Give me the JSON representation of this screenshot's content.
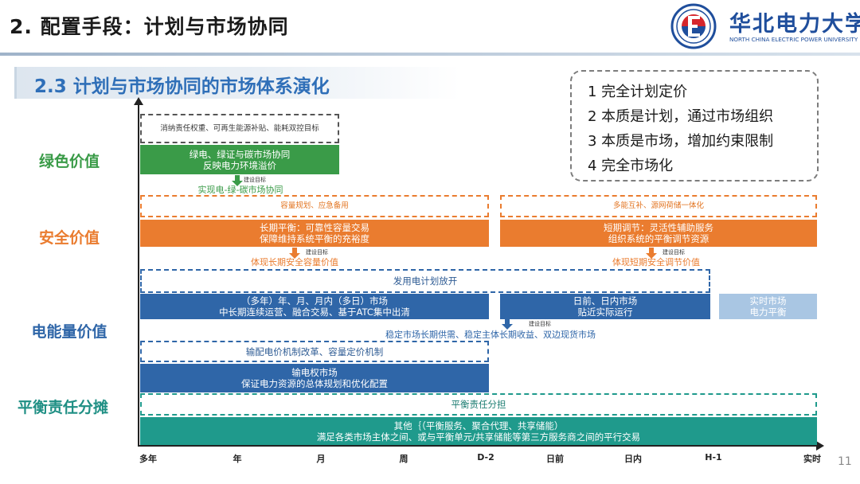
{
  "header": {
    "slide_title": "2. 配置手段：计划与市场协同",
    "logo_cn": "华北电力大学",
    "logo_en": "NORTH CHINA ELECTRIC POWER UNIVERSITY"
  },
  "section": {
    "title": "2.3 计划与市场协同的市场体系演化"
  },
  "legend": [
    "1 完全计划定价",
    "2 本质是计划，通过市场组织",
    "3 本质是市场，增加约束限制",
    "4 完全市场化"
  ],
  "rows": {
    "green": "绿色价值",
    "safety": "安全价值",
    "energy": "电能量价值",
    "balance": "平衡责任分摊"
  },
  "colors": {
    "green": "#3a9b48",
    "orange": "#ea7c2f",
    "blue": "#2f66a8",
    "light_blue": "#a9c6e3",
    "teal": "#1f9a8c"
  },
  "axis_ticks": [
    "多年",
    "年",
    "月",
    "周",
    "D-2",
    "日前",
    "日内",
    "H-1",
    "实时"
  ],
  "arrow_tag": "建设目标",
  "blocks": {
    "green_dashed": "消纳责任权重、可再生能源补贴、能耗双控目标",
    "green_solid": {
      "line1": "绿电、绿证与碳市场协同",
      "line2": "反映电力环境溢价"
    },
    "green_outcome": "实现电-绿-碳市场协同",
    "safety_left_dashed": "容量规划、应急备用",
    "safety_left_solid": {
      "line1": "长期平衡：可靠性容量交易",
      "line2": "保障维持系统平衡的充裕度"
    },
    "safety_left_outcome": "体现长期安全容量价值",
    "safety_right_dashed": "多能互补、源网荷储一体化",
    "safety_right_solid": {
      "line1": "短期调节：灵活性辅助服务",
      "line2": "组织系统的平衡调节资源"
    },
    "safety_right_outcome": "体现短期安全调节价值",
    "energy_plan": "发用电计划放开",
    "energy_mid_long": {
      "line1": "（多年）年、月、月内（多日）市场",
      "line2": "中长期连续运营、融合交易、基于ATC集中出清"
    },
    "energy_spot": {
      "line1": "日前、日内市场",
      "line2": "贴近实际运行"
    },
    "energy_realtime": {
      "line1": "实时市场",
      "line2": "电力平衡"
    },
    "energy_outcome": "稳定市场长期供需、稳定主体长期收益、双边现货市场",
    "energy_price_reform": "输配电价机制改革、容量定价机制",
    "energy_ftr": {
      "line1": "输电权市场",
      "line2": "保证电力资源的总体规划和优化配置"
    },
    "balance_dashed": "平衡责任分担",
    "balance_solid": {
      "line1": "其他｛（平衡服务、聚合代理、共享储能）",
      "line2": "满足各类市场主体之间、或与平衡单元/共享储能等第三方服务商之间的平行交易"
    }
  },
  "page_number": "11"
}
